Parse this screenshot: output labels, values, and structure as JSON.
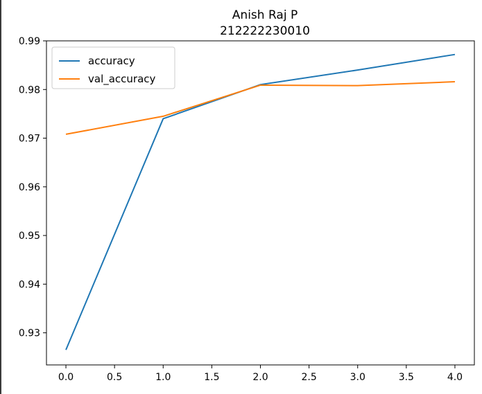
{
  "chart_data": {
    "type": "line",
    "title": "Anish Raj P",
    "subtitle": "212222230010",
    "xlabel": "",
    "ylabel": "",
    "x": [
      0.0,
      1.0,
      2.0,
      3.0,
      4.0
    ],
    "series": [
      {
        "name": "accuracy",
        "color": "#1f77b4",
        "values": [
          0.9265,
          0.974,
          0.981,
          0.984,
          0.9872
        ]
      },
      {
        "name": "val_accuracy",
        "color": "#ff7f0e",
        "values": [
          0.9708,
          0.9745,
          0.9809,
          0.9808,
          0.9816
        ]
      }
    ],
    "xlim": [
      -0.2,
      4.2
    ],
    "ylim": [
      0.9234,
      0.99
    ],
    "xticks": [
      0.0,
      0.5,
      1.0,
      1.5,
      2.0,
      2.5,
      3.0,
      3.5,
      4.0
    ],
    "xtick_labels": [
      "0.0",
      "0.5",
      "1.0",
      "1.5",
      "2.0",
      "2.5",
      "3.0",
      "3.5",
      "4.0"
    ],
    "yticks": [
      0.93,
      0.94,
      0.95,
      0.96,
      0.97,
      0.98,
      0.99
    ],
    "ytick_labels": [
      "0.93",
      "0.94",
      "0.95",
      "0.96",
      "0.97",
      "0.98",
      "0.99"
    ],
    "grid": false,
    "legend_position": "upper-left"
  }
}
